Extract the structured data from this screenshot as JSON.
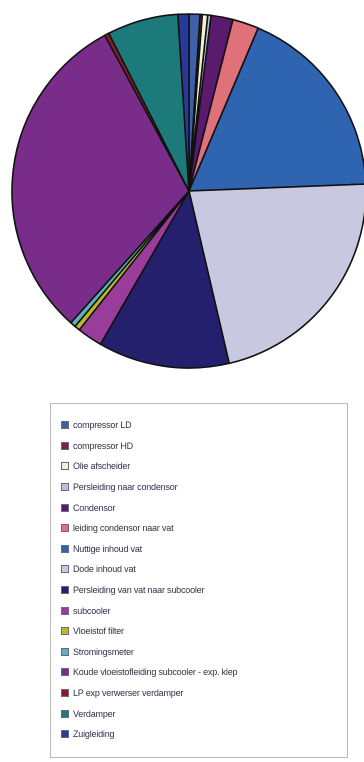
{
  "chart_data": {
    "type": "pie",
    "title": "",
    "legend_placement": "bottom",
    "labels": [
      "compressor LD",
      "compressor HD",
      "Olie afscheider",
      "Persleiding naar condensor",
      "Condensor",
      "leiding condensor naar vat",
      "Nuttige inhoud vat",
      "Dode inhoud vat",
      "Persleiding van vat naar subcooler",
      "subcooler",
      "Vloeistof filter",
      "Stromingsmeter",
      "Koude vloeistofleiding subcooler - exp. klep",
      "LP exp verwerser verdamper",
      "Verdamper",
      "Zuigleiding"
    ],
    "values": [
      1.0,
      0.2,
      0.5,
      0.3,
      2.0,
      2.4,
      18.0,
      22.0,
      12.0,
      2.3,
      0.5,
      0.5,
      30.5,
      0.4,
      6.5,
      1.0
    ],
    "colors": [
      "#3f5fa8",
      "#7a1f4e",
      "#f2f2d0",
      "#b8c0de",
      "#5a1a6e",
      "#e0707a",
      "#2e64b0",
      "#c8c8e0",
      "#24206e",
      "#9a3d9a",
      "#bcb82c",
      "#5cb0c0",
      "#7a2c8a",
      "#8a1a2c",
      "#1d7a7a",
      "#2a3a9a"
    ]
  }
}
